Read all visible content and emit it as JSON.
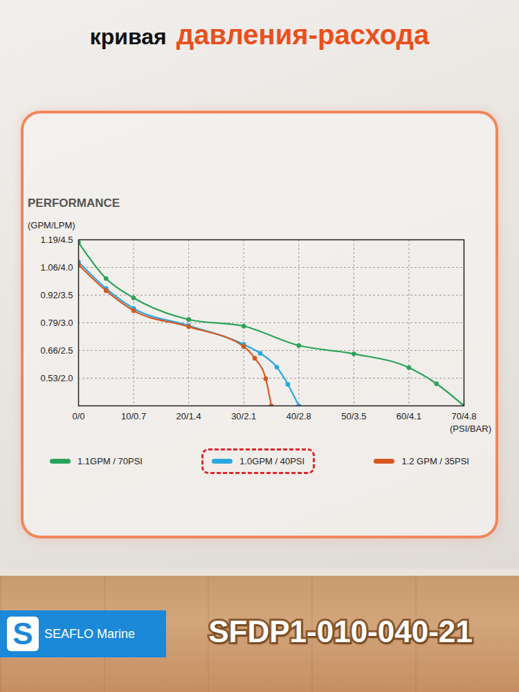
{
  "page": {
    "heading": [
      "кривая",
      "давления-расхода"
    ],
    "brand_letter": "S",
    "brand": "SEAFLO Marine",
    "model": "SFDP1-010-040-21"
  },
  "chart_data": {
    "type": "line",
    "title": "PERFORMANCE",
    "y_label": "(GPM/LPM)",
    "x_label": "(PSI/BAR)",
    "xlim": [
      0,
      70
    ],
    "xticks": [
      {
        "value": 0,
        "label": "0/0"
      },
      {
        "value": 10,
        "label": "10/0.7"
      },
      {
        "value": 20,
        "label": "20/1.4"
      },
      {
        "value": 30,
        "label": "30/2.1"
      },
      {
        "value": 40,
        "label": "40/2.8"
      },
      {
        "value": 50,
        "label": "50/3.5"
      },
      {
        "value": 60,
        "label": "60/4.1"
      },
      {
        "value": 70,
        "label": "70/4.8"
      }
    ],
    "ylim": [
      1.5,
      4.5
    ],
    "yticks": [
      {
        "value": 2.0,
        "label": "0.53/2.0"
      },
      {
        "value": 2.5,
        "label": "0.66/2.5"
      },
      {
        "value": 3.0,
        "label": "0.79/3.0"
      },
      {
        "value": 3.5,
        "label": "0.92/3.5"
      },
      {
        "value": 4.0,
        "label": "1.06/4.0"
      },
      {
        "value": 4.5,
        "label": "1.19/4.5"
      }
    ],
    "grid": true,
    "legend": "bottom",
    "series": [
      {
        "name": "1.1GPM / 70PSI",
        "color": "#2aa35a",
        "marker": "circle",
        "line_style": "solid",
        "x": [
          0,
          5,
          10,
          20,
          30,
          40,
          50,
          60,
          65,
          70
        ],
        "values": [
          4.45,
          3.8,
          3.45,
          3.06,
          2.94,
          2.59,
          2.44,
          2.19,
          1.9,
          1.5
        ]
      },
      {
        "name": "1.0GPM / 40PSI",
        "color": "#29a8e0",
        "marker": "circle",
        "line_style": "solid",
        "x": [
          0,
          5,
          10,
          20,
          30,
          33,
          36,
          38,
          40
        ],
        "values": [
          4.1,
          3.62,
          3.26,
          2.95,
          2.61,
          2.45,
          2.2,
          1.89,
          1.5
        ]
      },
      {
        "name": "1.2 GPM / 35PSI",
        "color": "#d9581f",
        "marker": "circle",
        "line_style": "solid",
        "x": [
          0,
          5,
          10,
          20,
          30,
          32,
          34,
          35
        ],
        "values": [
          4.05,
          3.58,
          3.22,
          2.93,
          2.57,
          2.36,
          1.99,
          1.5
        ]
      }
    ]
  }
}
